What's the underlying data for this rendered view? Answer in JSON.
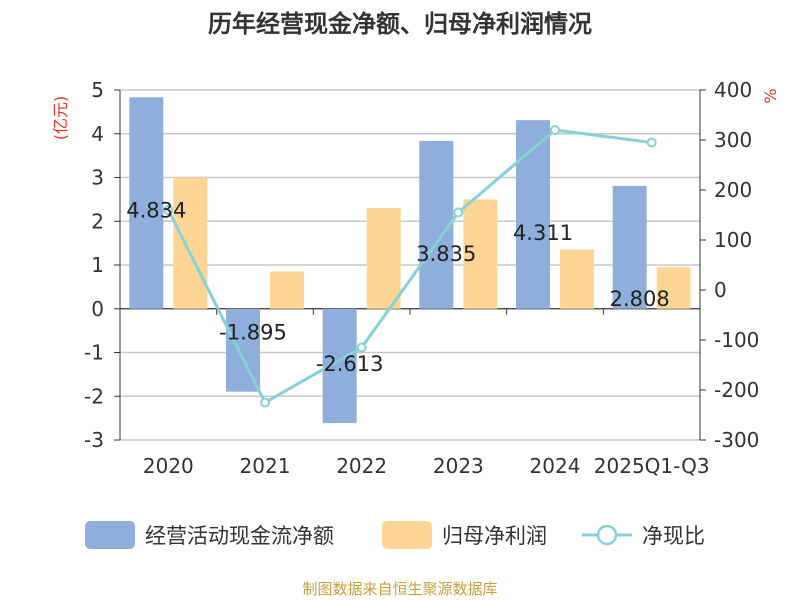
{
  "title": "历年经营现金净额、归母净利润情况",
  "source": "制图数据来自恒生聚源数据库",
  "chart_data": {
    "type": "bar",
    "categories": [
      "2020",
      "2021",
      "2022",
      "2023",
      "2024",
      "2025Q1-Q3"
    ],
    "series": [
      {
        "name": "经营活动现金流净额",
        "type": "bar",
        "axis": "left",
        "color": "#8eaedb",
        "values": [
          4.834,
          -1.895,
          -2.613,
          3.835,
          4.311,
          2.808
        ]
      },
      {
        "name": "归母净利润",
        "type": "bar",
        "axis": "left",
        "color": "#fdd696",
        "values": [
          3.0,
          0.85,
          2.3,
          2.5,
          1.35,
          0.95
        ]
      },
      {
        "name": "净现比",
        "type": "line",
        "axis": "right",
        "color": "#86d1d6",
        "values": [
          160,
          -225,
          -115,
          155,
          320,
          295
        ]
      }
    ],
    "data_labels": [
      "4.834",
      "-1.895",
      "-2.613",
      "3.835",
      "4.311",
      "2.808"
    ],
    "y_left": {
      "label": "(亿元)",
      "min": -3,
      "max": 5,
      "step": 1
    },
    "y_right": {
      "label": "%",
      "min": -300,
      "max": 400,
      "step": 100
    },
    "grid": true,
    "legend_position": "bottom"
  }
}
